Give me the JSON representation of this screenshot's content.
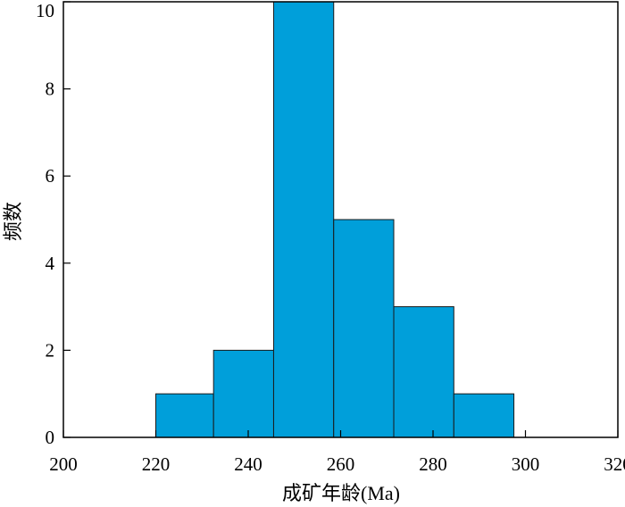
{
  "chart_data": {
    "type": "bar",
    "subtype": "histogram",
    "bins": [
      {
        "start": 220,
        "end": 232.5,
        "count": 1
      },
      {
        "start": 232.5,
        "end": 245.5,
        "count": 2
      },
      {
        "start": 245.5,
        "end": 258.5,
        "count": 10
      },
      {
        "start": 258.5,
        "end": 271.5,
        "count": 5
      },
      {
        "start": 271.5,
        "end": 284.5,
        "count": 3
      },
      {
        "start": 284.5,
        "end": 297.5,
        "count": 1
      }
    ],
    "xlabel": "成矿年龄(Ma)",
    "ylabel": "频数",
    "xlim": [
      200,
      320
    ],
    "ylim": [
      0,
      10
    ],
    "xticks": [
      200,
      220,
      240,
      260,
      280,
      300,
      320
    ],
    "yticks": [
      0,
      2,
      4,
      6,
      8,
      10
    ],
    "grid": false,
    "bar_color": "#009FDA",
    "edge_color": "#1a1a1a"
  }
}
